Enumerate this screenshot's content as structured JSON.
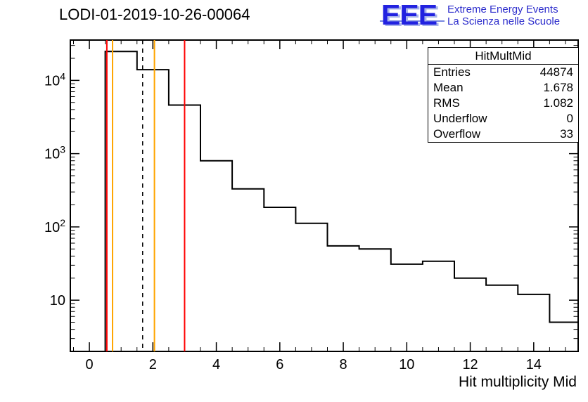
{
  "header": {
    "title": "LODI-01-2019-10-26-00064"
  },
  "logo": {
    "acronym": "EEE",
    "line1": "Extreme Energy Events",
    "line2": "La Scienza nelle Scuole",
    "color": "#2222e0"
  },
  "stats_box": {
    "title": "HitMultMid",
    "rows": [
      {
        "label": "Entries",
        "value": "44874"
      },
      {
        "label": "Mean",
        "value": "1.678"
      },
      {
        "label": "RMS",
        "value": "1.082"
      },
      {
        "label": "Underflow",
        "value": "0"
      },
      {
        "label": "Overflow",
        "value": "33"
      }
    ]
  },
  "chart_data": {
    "type": "histogram",
    "title": "LODI-01-2019-10-26-00064",
    "xlabel": "Hit multiplicity Mid",
    "ylabel": "",
    "y_scale": "log",
    "x_range": [
      -0.6,
      15.4
    ],
    "y_range": [
      2,
      35500
    ],
    "bin_edges": [
      0.5,
      1.5,
      2.5,
      3.5,
      4.5,
      5.5,
      6.5,
      7.5,
      8.5,
      9.5,
      10.5,
      11.5,
      12.5,
      13.5,
      14.5,
      15.5
    ],
    "counts": [
      24800,
      14000,
      4600,
      800,
      330,
      185,
      112,
      55,
      50,
      31,
      34,
      20,
      16,
      12,
      5
    ],
    "x_major_ticks": [
      0,
      2,
      4,
      6,
      8,
      10,
      12,
      14
    ],
    "x_minor_step": 0.5,
    "y_decades": [
      10,
      100,
      1000,
      10000
    ],
    "marker_lines": [
      {
        "x": 0.55,
        "color": "#ff0000",
        "style": "solid"
      },
      {
        "x": 0.73,
        "color": "#ffa500",
        "style": "solid"
      },
      {
        "x": 1.678,
        "color": "#000000",
        "style": "dashed"
      },
      {
        "x": 2.05,
        "color": "#ffa500",
        "style": "solid"
      },
      {
        "x": 3.0,
        "color": "#ff0000",
        "style": "solid"
      }
    ],
    "stats": {
      "entries": 44874,
      "mean": 1.678,
      "rms": 1.082,
      "underflow": 0,
      "overflow": 33
    },
    "grid": false,
    "line_color": "#000000",
    "legend": "none"
  }
}
